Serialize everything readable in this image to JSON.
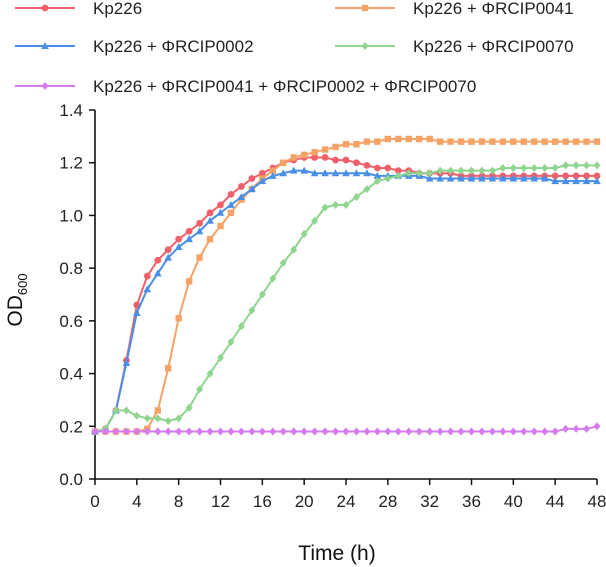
{
  "chart_data": {
    "type": "line",
    "title": "",
    "xlabel": "Time (h)",
    "ylabel_main": "OD",
    "ylabel_sub": "600",
    "xlim": [
      0,
      48
    ],
    "ylim": [
      0.0,
      1.4
    ],
    "x_ticks": [
      0,
      4,
      8,
      12,
      16,
      20,
      24,
      28,
      32,
      36,
      40,
      44,
      48
    ],
    "y_ticks": [
      "0.0",
      "0.2",
      "0.4",
      "0.6",
      "0.8",
      "1.0",
      "1.2",
      "1.4"
    ],
    "x_step": 1,
    "grid": false,
    "legend_position": "top",
    "series": [
      {
        "name": "Kp226",
        "color": "#f0606a",
        "marker": "circle",
        "values": [
          0.18,
          0.19,
          0.26,
          0.45,
          0.66,
          0.77,
          0.83,
          0.87,
          0.91,
          0.94,
          0.97,
          1.01,
          1.04,
          1.08,
          1.11,
          1.14,
          1.16,
          1.18,
          1.2,
          1.21,
          1.22,
          1.22,
          1.22,
          1.21,
          1.21,
          1.2,
          1.19,
          1.18,
          1.18,
          1.17,
          1.17,
          1.16,
          1.16,
          1.16,
          1.16,
          1.15,
          1.15,
          1.15,
          1.15,
          1.15,
          1.15,
          1.15,
          1.15,
          1.15,
          1.15,
          1.15,
          1.15,
          1.15,
          1.15
        ]
      },
      {
        "name": "Kp226 + ΦRCIP0041",
        "color": "#f5a266",
        "marker": "square",
        "values": [
          0.18,
          0.18,
          0.18,
          0.18,
          0.18,
          0.19,
          0.26,
          0.42,
          0.61,
          0.75,
          0.84,
          0.91,
          0.96,
          1.01,
          1.06,
          1.1,
          1.14,
          1.17,
          1.2,
          1.22,
          1.23,
          1.24,
          1.25,
          1.26,
          1.27,
          1.27,
          1.28,
          1.28,
          1.29,
          1.29,
          1.29,
          1.29,
          1.29,
          1.28,
          1.28,
          1.28,
          1.28,
          1.28,
          1.28,
          1.28,
          1.28,
          1.28,
          1.28,
          1.28,
          1.28,
          1.28,
          1.28,
          1.28,
          1.28
        ]
      },
      {
        "name": "Kp226 + ΦRCIP0002",
        "color": "#4a8fe7",
        "marker": "triangle",
        "values": [
          0.18,
          0.19,
          0.26,
          0.44,
          0.63,
          0.72,
          0.78,
          0.84,
          0.88,
          0.91,
          0.94,
          0.98,
          1.01,
          1.04,
          1.07,
          1.1,
          1.13,
          1.15,
          1.16,
          1.17,
          1.17,
          1.16,
          1.16,
          1.16,
          1.16,
          1.16,
          1.16,
          1.15,
          1.15,
          1.15,
          1.15,
          1.15,
          1.14,
          1.14,
          1.14,
          1.14,
          1.14,
          1.14,
          1.14,
          1.14,
          1.14,
          1.14,
          1.14,
          1.14,
          1.13,
          1.13,
          1.13,
          1.13,
          1.13
        ]
      },
      {
        "name": "Kp226 + ΦRCIP0070",
        "color": "#8fd48f",
        "marker": "diamond",
        "values": [
          0.18,
          0.19,
          0.26,
          0.26,
          0.24,
          0.23,
          0.23,
          0.22,
          0.23,
          0.27,
          0.34,
          0.4,
          0.46,
          0.52,
          0.58,
          0.64,
          0.7,
          0.76,
          0.82,
          0.87,
          0.93,
          0.98,
          1.03,
          1.04,
          1.04,
          1.07,
          1.1,
          1.13,
          1.14,
          1.15,
          1.16,
          1.16,
          1.16,
          1.17,
          1.17,
          1.17,
          1.17,
          1.17,
          1.17,
          1.18,
          1.18,
          1.18,
          1.18,
          1.18,
          1.18,
          1.19,
          1.19,
          1.19,
          1.19
        ]
      },
      {
        "name": "Kp226 + ΦRCIP0041 + ΦRCIP0002 + ΦRCIP0070",
        "color": "#d67af0",
        "marker": "diamond",
        "values": [
          0.18,
          0.18,
          0.18,
          0.18,
          0.18,
          0.18,
          0.18,
          0.18,
          0.18,
          0.18,
          0.18,
          0.18,
          0.18,
          0.18,
          0.18,
          0.18,
          0.18,
          0.18,
          0.18,
          0.18,
          0.18,
          0.18,
          0.18,
          0.18,
          0.18,
          0.18,
          0.18,
          0.18,
          0.18,
          0.18,
          0.18,
          0.18,
          0.18,
          0.18,
          0.18,
          0.18,
          0.18,
          0.18,
          0.18,
          0.18,
          0.18,
          0.18,
          0.18,
          0.18,
          0.18,
          0.19,
          0.19,
          0.19,
          0.2
        ]
      }
    ]
  }
}
